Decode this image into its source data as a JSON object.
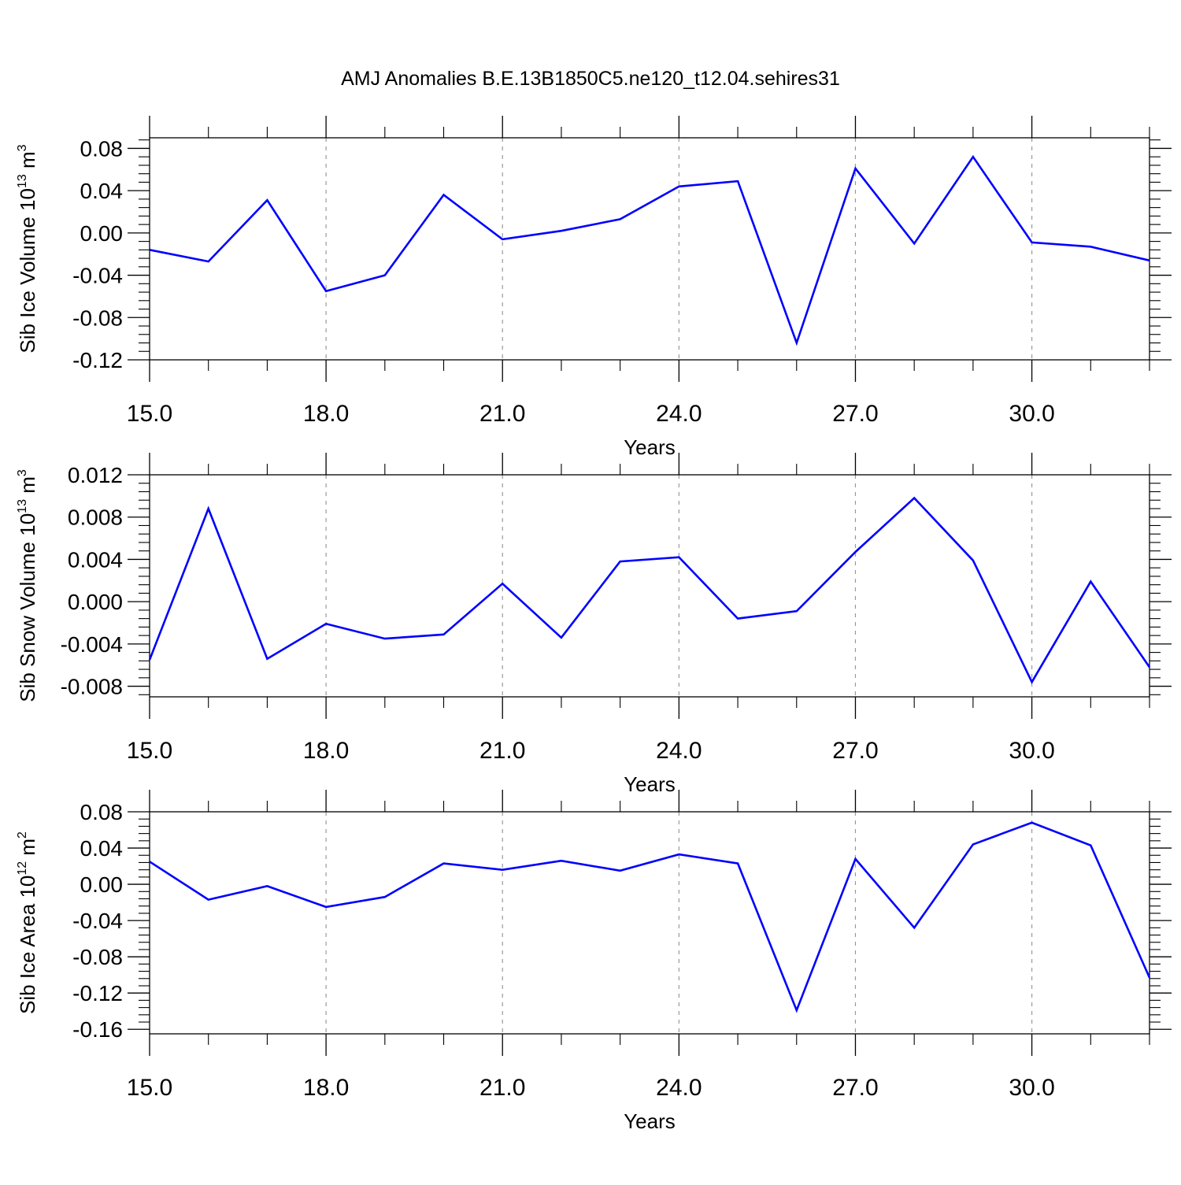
{
  "title": "AMJ Anomalies B.E.13B1850C5.ne120_t12.04.sehires31",
  "colors": {
    "line": "#0000ff",
    "axis": "#000000",
    "grid": "#999999"
  },
  "chart_data": [
    {
      "type": "line",
      "xlabel": "Years",
      "ylabel": {
        "text": "Sib Ice Volume 10",
        "exp": "13",
        "unit": " m",
        "unit_exp": "3"
      },
      "xlim": [
        15,
        32
      ],
      "ylim": [
        -0.12,
        0.09
      ],
      "xticks": [
        15,
        18,
        21,
        24,
        27,
        30
      ],
      "xtick_labels": [
        "15.0",
        "18.0",
        "21.0",
        "24.0",
        "27.0",
        "30.0"
      ],
      "yticks": [
        -0.12,
        -0.08,
        -0.04,
        0.0,
        0.04,
        0.08
      ],
      "ytick_labels": [
        "-0.12",
        "-0.08",
        "-0.04",
        "0.00",
        "0.04",
        "0.08"
      ],
      "grid": "x-dashed",
      "x": [
        15,
        16,
        17,
        18,
        19,
        20,
        21,
        22,
        23,
        24,
        25,
        26,
        27,
        28,
        29,
        30,
        31,
        32
      ],
      "values": [
        -0.016,
        -0.027,
        0.031,
        -0.055,
        -0.04,
        0.036,
        -0.006,
        0.002,
        0.013,
        0.044,
        0.049,
        -0.104,
        0.061,
        -0.01,
        0.072,
        -0.009,
        -0.013,
        -0.026
      ]
    },
    {
      "type": "line",
      "xlabel": "Years",
      "ylabel": {
        "text": "Sib Snow Volume 10",
        "exp": "13",
        "unit": " m",
        "unit_exp": "3"
      },
      "xlim": [
        15,
        32
      ],
      "ylim": [
        -0.009,
        0.012
      ],
      "xticks": [
        15,
        18,
        21,
        24,
        27,
        30
      ],
      "xtick_labels": [
        "15.0",
        "18.0",
        "21.0",
        "24.0",
        "27.0",
        "30.0"
      ],
      "yticks": [
        -0.008,
        -0.004,
        0.0,
        0.004,
        0.008,
        0.012
      ],
      "ytick_labels": [
        "-0.008",
        "-0.004",
        "0.000",
        "0.004",
        "0.008",
        "0.012"
      ],
      "grid": "x-dashed",
      "x": [
        15,
        16,
        17,
        18,
        19,
        20,
        21,
        22,
        23,
        24,
        25,
        26,
        27,
        28,
        29,
        30,
        31,
        32
      ],
      "values": [
        -0.0055,
        0.0088,
        -0.0054,
        -0.0021,
        -0.0035,
        -0.0031,
        0.0017,
        -0.0034,
        0.0038,
        0.0042,
        -0.0016,
        -0.0009,
        0.0047,
        0.0098,
        0.0039,
        -0.0076,
        0.0019,
        -0.0062
      ]
    },
    {
      "type": "line",
      "xlabel": "Years",
      "ylabel": {
        "text": "Sib Ice Area 10",
        "exp": "12",
        "unit": " m",
        "unit_exp": "2"
      },
      "xlim": [
        15,
        32
      ],
      "ylim": [
        -0.165,
        0.08
      ],
      "xticks": [
        15,
        18,
        21,
        24,
        27,
        30
      ],
      "xtick_labels": [
        "15.0",
        "18.0",
        "21.0",
        "24.0",
        "27.0",
        "30.0"
      ],
      "yticks": [
        -0.16,
        -0.12,
        -0.08,
        -0.04,
        0.0,
        0.04,
        0.08
      ],
      "ytick_labels": [
        "-0.16",
        "-0.12",
        "-0.08",
        "-0.04",
        "0.00",
        "0.04",
        "0.08"
      ],
      "grid": "x-dashed",
      "x": [
        15,
        16,
        17,
        18,
        19,
        20,
        21,
        22,
        23,
        24,
        25,
        26,
        27,
        28,
        29,
        30,
        31,
        32
      ],
      "values": [
        0.025,
        -0.017,
        -0.002,
        -0.025,
        -0.014,
        0.023,
        0.016,
        0.026,
        0.015,
        0.033,
        0.023,
        -0.139,
        0.028,
        -0.048,
        0.044,
        0.068,
        0.043,
        -0.103
      ]
    }
  ]
}
